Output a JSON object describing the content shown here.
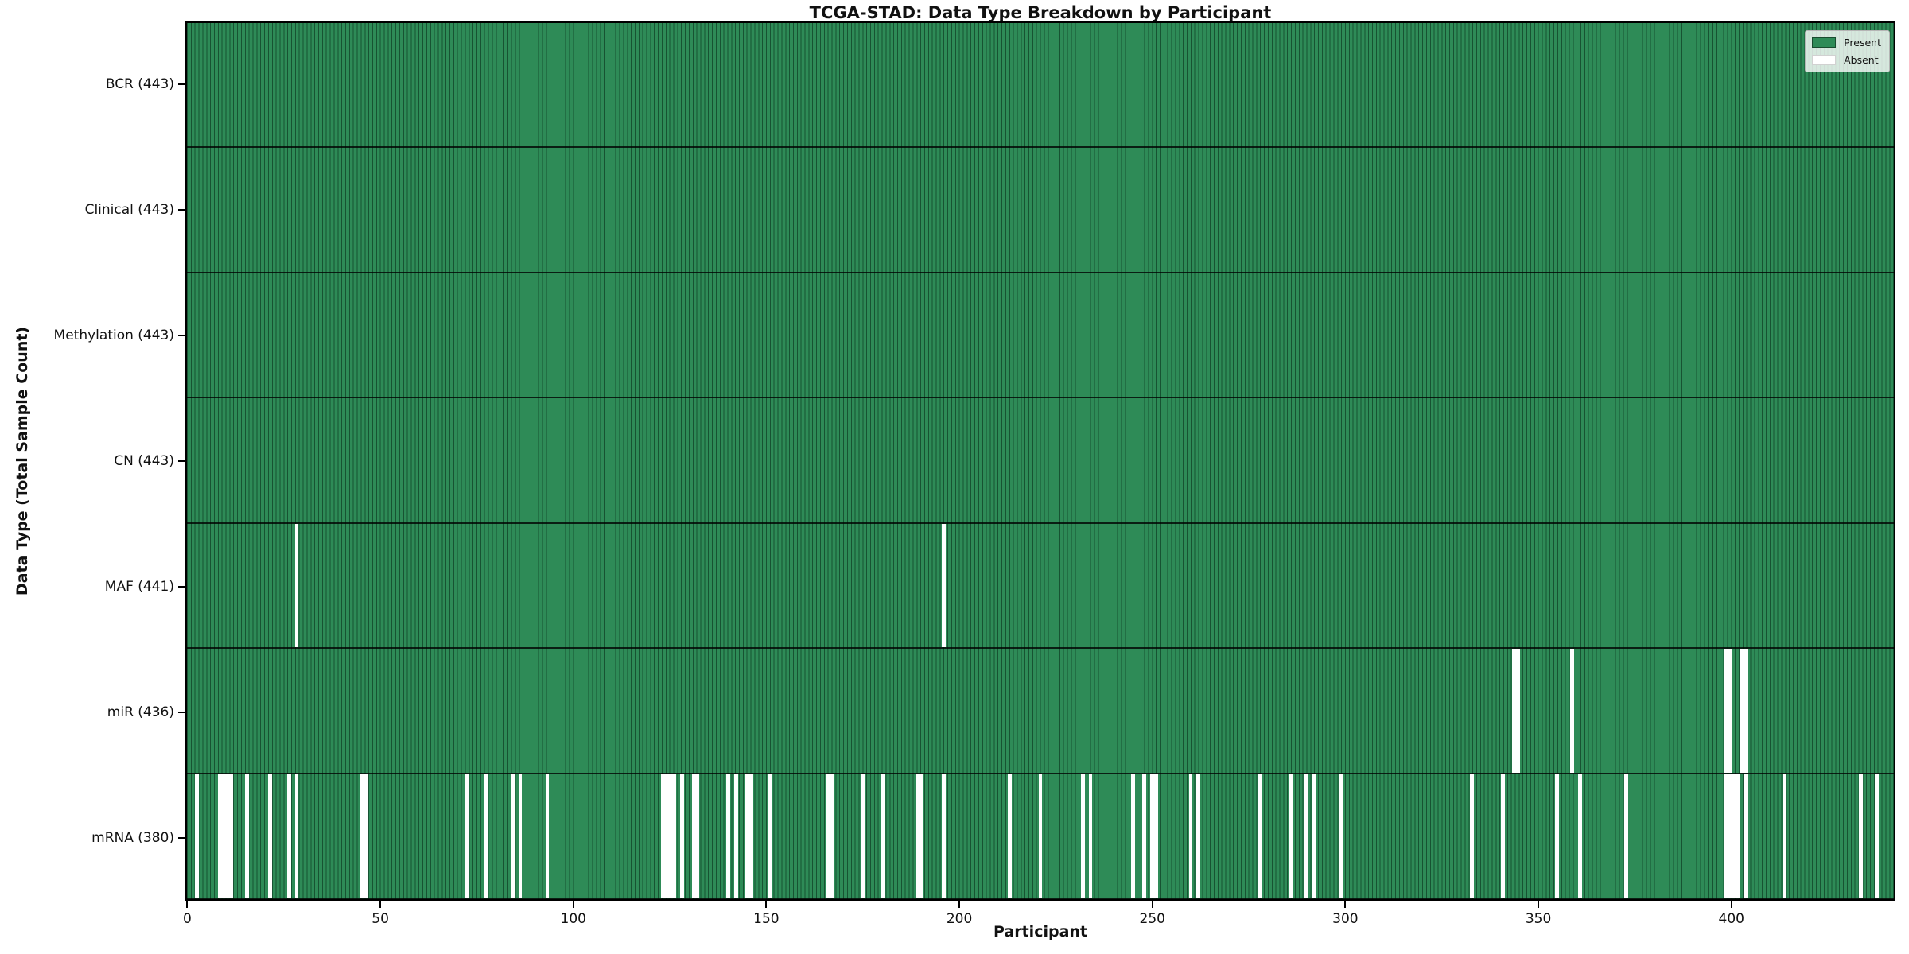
{
  "chart_data": {
    "type": "heatmap",
    "title": "TCGA-STAD: Data Type Breakdown by Participant",
    "xlabel": "Participant",
    "ylabel": "Data Type (Total Sample Count)",
    "n_participants": 443,
    "x_ticks": [
      0,
      50,
      100,
      150,
      200,
      250,
      300,
      350,
      400
    ],
    "x_range": [
      0,
      443
    ],
    "grid": false,
    "legend_position": "upper right",
    "colors": {
      "present": "#2e8b57",
      "absent": "#ffffff",
      "bar_edge": "rgba(0,28,13,0.5)",
      "row_divider": "rgba(0,0,0,0.78)"
    },
    "legend": [
      {
        "label": "Present",
        "color": "#2e8b57"
      },
      {
        "label": "Absent",
        "color": "#ffffff"
      }
    ],
    "rows": [
      {
        "label": "BCR (443)",
        "data_type": "BCR",
        "present_count": 443,
        "absent_participants": []
      },
      {
        "label": "Clinical (443)",
        "data_type": "Clinical",
        "present_count": 443,
        "absent_participants": []
      },
      {
        "label": "Methylation (443)",
        "data_type": "Methylation",
        "present_count": 443,
        "absent_participants": []
      },
      {
        "label": "CN (443)",
        "data_type": "CN",
        "present_count": 443,
        "absent_participants": []
      },
      {
        "label": "MAF (441)",
        "data_type": "MAF",
        "present_count": 441,
        "absent_participants": [
          28,
          196
        ]
      },
      {
        "label": "miR (436)",
        "data_type": "miR",
        "present_count": 436,
        "absent_participants": [
          344,
          345,
          359,
          399,
          400,
          403,
          404
        ]
      },
      {
        "label": "mRNA (380)",
        "data_type": "mRNA",
        "present_count": 380,
        "absent_participants": [
          2,
          8,
          9,
          10,
          11,
          15,
          21,
          26,
          28,
          45,
          46,
          72,
          77,
          84,
          86,
          93,
          123,
          124,
          125,
          126,
          128,
          131,
          132,
          140,
          142,
          145,
          146,
          151,
          166,
          167,
          175,
          180,
          189,
          190,
          196,
          213,
          221,
          232,
          234,
          245,
          248,
          250,
          251,
          260,
          262,
          278,
          286,
          290,
          292,
          299,
          333,
          341,
          355,
          361,
          373,
          399,
          400,
          401,
          402,
          404,
          414,
          434,
          438
        ]
      }
    ]
  }
}
